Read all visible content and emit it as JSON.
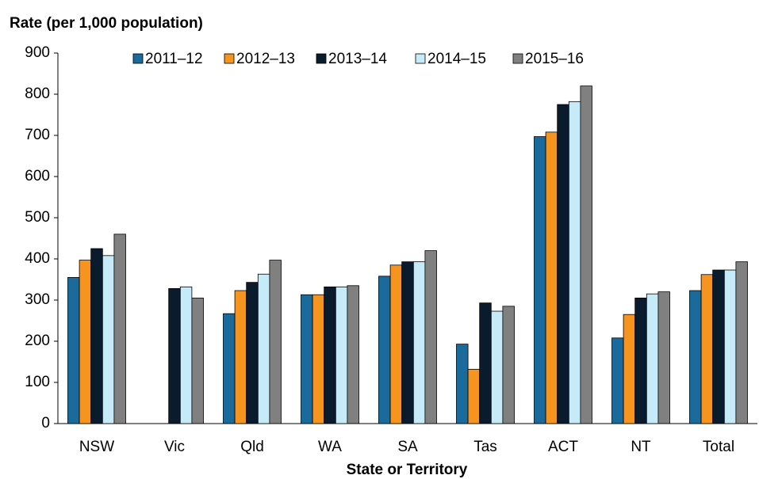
{
  "chart_data": {
    "type": "bar",
    "title": "Rate (per 1,000 population)",
    "x_label": "State or Territory",
    "categories": [
      "NSW",
      "Vic",
      "Qld",
      "WA",
      "SA",
      "Tas",
      "ACT",
      "NT",
      "Total"
    ],
    "series": [
      {
        "name": "2011–12",
        "color": "#1b6a9c",
        "values": [
          355,
          null,
          267,
          313,
          358,
          193,
          697,
          208,
          323
        ]
      },
      {
        "name": "2012–13",
        "color": "#f7941d",
        "values": [
          397,
          null,
          323,
          313,
          385,
          132,
          708,
          265,
          362
        ]
      },
      {
        "name": "2013–14",
        "color": "#0b1b2e",
        "values": [
          425,
          328,
          343,
          332,
          393,
          293,
          775,
          305,
          373
        ]
      },
      {
        "name": "2014–15",
        "color": "#c7eaf8",
        "values": [
          408,
          332,
          363,
          332,
          393,
          273,
          782,
          315,
          373
        ]
      },
      {
        "name": "2015–16",
        "color": "#808080",
        "values": [
          460,
          305,
          397,
          335,
          420,
          285,
          820,
          320,
          393
        ]
      }
    ],
    "ylim": [
      0,
      900
    ],
    "yticks": [
      0,
      100,
      200,
      300,
      400,
      500,
      600,
      700,
      800,
      900
    ]
  }
}
